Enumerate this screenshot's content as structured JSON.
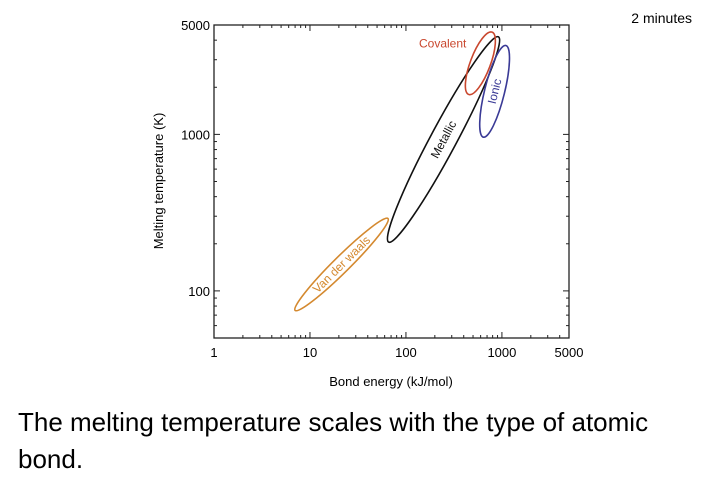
{
  "timer": "2  minutes",
  "caption": "The melting temperature scales with the type of atomic bond.",
  "chart_data": {
    "type": "scatter",
    "title": "",
    "xlabel": "Bond energy (kJ/mol)",
    "ylabel": "Melting temperature (K)",
    "xscale": "log",
    "yscale": "log",
    "xlim": [
      1,
      5000
    ],
    "ylim": [
      50,
      5000
    ],
    "xticks": [
      1,
      10,
      100,
      1000,
      5000
    ],
    "xtick_labels": [
      "1",
      "10",
      "100",
      "1000",
      "5000"
    ],
    "yticks": [
      100,
      1000,
      5000
    ],
    "ytick_labels": [
      "100",
      "1000",
      "5000"
    ],
    "grid": false,
    "regions": [
      {
        "name": "Van der waals",
        "color": "#d4892f",
        "from": [
          7,
          75
        ],
        "to": [
          65,
          290
        ]
      },
      {
        "name": "Metallic",
        "color": "#111111",
        "from": [
          66,
          205
        ],
        "to": [
          920,
          4200
        ]
      },
      {
        "name": "Covalent",
        "color": "#c9472e",
        "from": [
          450,
          1800
        ],
        "to": [
          790,
          4500
        ]
      },
      {
        "name": "Ionic",
        "color": "#3a3a96",
        "from": [
          640,
          960
        ],
        "to": [
          1100,
          3700
        ]
      }
    ]
  }
}
